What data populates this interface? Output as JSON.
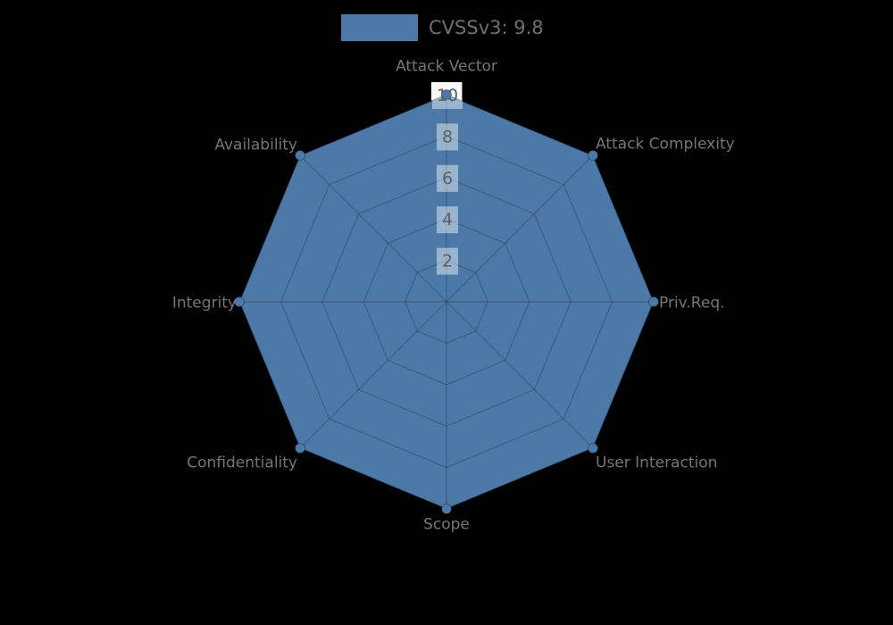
{
  "legend": {
    "label": "CVSSv3: 9.8"
  },
  "chart_data": {
    "type": "radar",
    "title": "",
    "categories": [
      "Attack Vector",
      "Attack Complexity",
      "Priv.Req.",
      "User Interaction",
      "Scope",
      "Confidentiality",
      "Integrity",
      "Availability"
    ],
    "series": [
      {
        "name": "CVSSv3: 9.8",
        "values": [
          10,
          10,
          10,
          10,
          10,
          10,
          10,
          10
        ]
      }
    ],
    "rlim": [
      0,
      10
    ],
    "rticks": [
      2,
      4,
      6,
      8,
      10
    ],
    "grid": true,
    "legend_position": "top-center",
    "colors": {
      "fill": "#4d79a8",
      "grid_line": "rgba(0,0,0,0.22)",
      "outline": "rgba(0,0,0,0.28)",
      "tick_box": "rgba(255,255,255,0.44)",
      "tick_box_outer": "#f5f5f5",
      "tick_text": "#595f66",
      "label_text": "#757575",
      "legend_text": "#6f6f6f",
      "background": "#000000"
    }
  }
}
